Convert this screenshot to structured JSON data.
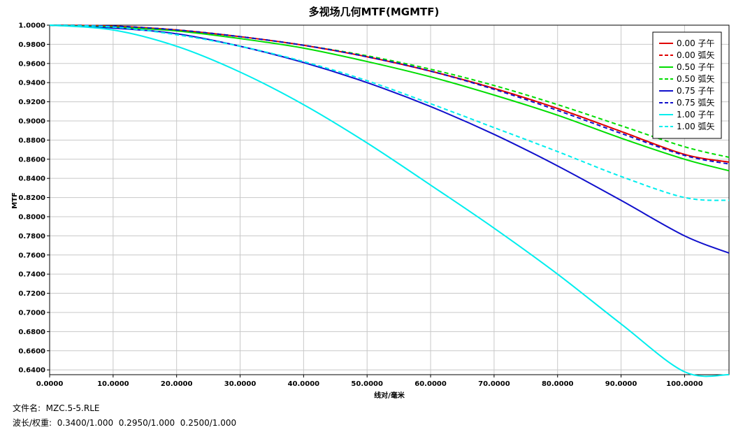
{
  "chart_data": {
    "type": "line",
    "title": "多视场几何MTF(MGMTF)",
    "xlabel": "线对/毫米",
    "ylabel": "MTF",
    "xlim": [
      0,
      107
    ],
    "ylim": [
      0.635,
      1.0
    ],
    "x_ticks": [
      0,
      10,
      20,
      30,
      40,
      50,
      60,
      70,
      80,
      90,
      100
    ],
    "x_tick_labels": [
      "0.0000",
      "10.0000",
      "20.0000",
      "30.0000",
      "40.0000",
      "50.0000",
      "60.0000",
      "70.0000",
      "80.0000",
      "90.0000",
      "100.0000"
    ],
    "y_ticks": [
      1.0,
      0.98,
      0.96,
      0.94,
      0.92,
      0.9,
      0.88,
      0.86,
      0.84,
      0.82,
      0.8,
      0.78,
      0.76,
      0.74,
      0.72,
      0.7,
      0.68,
      0.66,
      0.64
    ],
    "y_tick_labels": [
      "1.0000",
      "0.9800",
      "0.9600",
      "0.9400",
      "0.9200",
      "0.9000",
      "0.8800",
      "0.8600",
      "0.8400",
      "0.8200",
      "0.8000",
      "0.7800",
      "0.7600",
      "0.7400",
      "0.7200",
      "0.7000",
      "0.6800",
      "0.6600",
      "0.6400"
    ],
    "grid": true,
    "legend_position": "top-right",
    "x": [
      0,
      10,
      20,
      30,
      40,
      50,
      60,
      70,
      80,
      90,
      100,
      107
    ],
    "series": [
      {
        "name": "0.00 子午",
        "color": "#e00000",
        "dash": false,
        "values": [
          1.0,
          0.999,
          0.995,
          0.988,
          0.979,
          0.967,
          0.952,
          0.934,
          0.913,
          0.889,
          0.865,
          0.857
        ]
      },
      {
        "name": "0.00 弧矢",
        "color": "#e00000",
        "dash": true,
        "values": [
          1.0,
          0.999,
          0.995,
          0.988,
          0.979,
          0.967,
          0.952,
          0.934,
          0.913,
          0.889,
          0.865,
          0.857
        ]
      },
      {
        "name": "0.50 子午",
        "color": "#00dd00",
        "dash": false,
        "values": [
          1.0,
          0.998,
          0.994,
          0.986,
          0.976,
          0.962,
          0.946,
          0.927,
          0.906,
          0.882,
          0.86,
          0.848
        ]
      },
      {
        "name": "0.50 弧矢",
        "color": "#00dd00",
        "dash": true,
        "values": [
          1.0,
          0.999,
          0.995,
          0.988,
          0.979,
          0.968,
          0.954,
          0.937,
          0.917,
          0.895,
          0.873,
          0.862
        ]
      },
      {
        "name": "0.75 子午",
        "color": "#1010cc",
        "dash": false,
        "values": [
          1.0,
          0.997,
          0.991,
          0.978,
          0.961,
          0.94,
          0.915,
          0.886,
          0.853,
          0.817,
          0.78,
          0.762
        ]
      },
      {
        "name": "0.75 弧矢",
        "color": "#1010cc",
        "dash": true,
        "values": [
          1.0,
          0.999,
          0.995,
          0.988,
          0.979,
          0.967,
          0.952,
          0.933,
          0.911,
          0.887,
          0.864,
          0.855
        ]
      },
      {
        "name": "1.00 子午",
        "color": "#00eeee",
        "dash": false,
        "values": [
          1.0,
          0.995,
          0.978,
          0.951,
          0.917,
          0.877,
          0.833,
          0.788,
          0.74,
          0.688,
          0.638,
          0.635
        ]
      },
      {
        "name": "1.00 弧矢",
        "color": "#00eeee",
        "dash": true,
        "values": [
          1.0,
          0.998,
          0.99,
          0.978,
          0.962,
          0.942,
          0.918,
          0.893,
          0.868,
          0.842,
          0.82,
          0.817
        ]
      }
    ]
  },
  "footer": {
    "file_line": "文件名:  MZC.5-5.RLE",
    "wave_line": "波长/权重:  0.3400/1.000  0.2950/1.000  0.2500/1.000"
  }
}
